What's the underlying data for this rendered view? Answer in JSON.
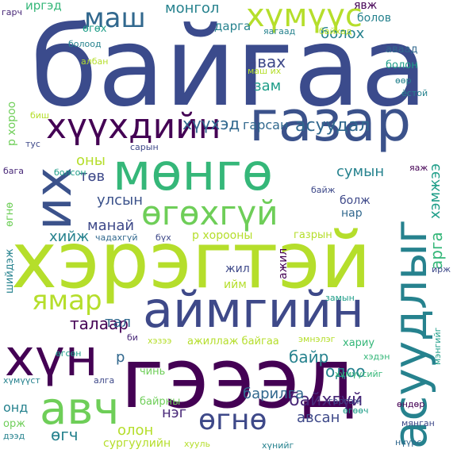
{
  "colors": {
    "background": "#ffffff",
    "palette": [
      "#440154",
      "#482878",
      "#3e4989",
      "#31688e",
      "#26828e",
      "#1f9e89",
      "#35b779",
      "#6ece58",
      "#b5de2b",
      "#fde725"
    ]
  },
  "words": [
    {
      "text": "байгаа",
      "color": "#3b4b8c"
    },
    {
      "text": "хэрэгтэй",
      "color": "#b5de2b"
    },
    {
      "text": "гэээд",
      "color": "#440154"
    },
    {
      "text": "газар",
      "color": "#3b528b"
    },
    {
      "text": "мөнгө",
      "color": "#35b779"
    },
    {
      "text": "аймгийн",
      "color": "#3e4989"
    },
    {
      "text": "асуудлыг",
      "color": "#26828e"
    },
    {
      "text": "хүн",
      "color": "#440154"
    },
    {
      "text": "их",
      "color": "#3b528b"
    },
    {
      "text": "хүүхдийн",
      "color": "#440154"
    },
    {
      "text": "авч",
      "color": "#6ece58"
    },
    {
      "text": "өгөхгүй",
      "color": "#6ece58"
    },
    {
      "text": "хүмүүс",
      "color": "#b5de2b"
    },
    {
      "text": "ямар",
      "color": "#b5de2b"
    },
    {
      "text": "маш",
      "color": "#31688e"
    },
    {
      "text": "өгнө",
      "color": "#3e4989"
    },
    {
      "text": "хүүхэд",
      "color": "#31688e"
    },
    {
      "text": "асуудал",
      "color": "#31688e"
    },
    {
      "text": "талаар",
      "color": "#440154"
    },
    {
      "text": "авах",
      "color": "#3e4989"
    },
    {
      "text": "гарсан",
      "color": "#31688e"
    },
    {
      "text": "монгол",
      "color": "#26828e"
    },
    {
      "text": "болох",
      "color": "#26828e"
    },
    {
      "text": "байхгүй",
      "color": "#482878"
    },
    {
      "text": "сумын",
      "color": "#26828e"
    },
    {
      "text": "улсын",
      "color": "#3b528b"
    },
    {
      "text": "манай",
      "color": "#3e4989"
    },
    {
      "text": "байр",
      "color": "#26828e"
    },
    {
      "text": "арга",
      "color": "#35b779"
    },
    {
      "text": "хэмжээ",
      "color": "#1f9e89"
    },
    {
      "text": "одоо",
      "color": "#26828e"
    },
    {
      "text": "авсан",
      "color": "#3e4989"
    },
    {
      "text": "барилга",
      "color": "#31688e"
    },
    {
      "text": "олон",
      "color": "#b5de2b"
    },
    {
      "text": "нэг",
      "color": "#482878"
    },
    {
      "text": "өгч",
      "color": "#26828e"
    },
    {
      "text": "тал",
      "color": "#31688e"
    },
    {
      "text": "оны",
      "color": "#b5de2b"
    },
    {
      "text": "төв",
      "color": "#3e4989"
    },
    {
      "text": "хийж",
      "color": "#26828e"
    },
    {
      "text": "зам",
      "color": "#1f9e89"
    },
    {
      "text": "иргэд",
      "color": "#35b779"
    },
    {
      "text": "өгөх",
      "color": "#1f9e89"
    },
    {
      "text": "дарга",
      "color": "#26828e"
    },
    {
      "text": "явж",
      "color": "#440154"
    },
    {
      "text": "болов",
      "color": "#26828e"
    },
    {
      "text": "аваад",
      "color": "#31688e"
    },
    {
      "text": "болон",
      "color": "#1f9e89"
    },
    {
      "text": "нар",
      "color": "#31688e"
    },
    {
      "text": "болж",
      "color": "#3e4989"
    },
    {
      "text": "р хороо",
      "color": "#6ece58"
    },
    {
      "text": "р хорооны",
      "color": "#b5de2b"
    },
    {
      "text": "газрын",
      "color": "#b5de2b"
    },
    {
      "text": "жил",
      "color": "#3e4989"
    },
    {
      "text": "ажил",
      "color": "#440154"
    },
    {
      "text": "ийм",
      "color": "#b5de2b"
    },
    {
      "text": "р",
      "color": "#31688e"
    },
    {
      "text": "чинь",
      "color": "#6ece58"
    },
    {
      "text": "байрны",
      "color": "#6ece58"
    },
    {
      "text": "сургуулийн",
      "color": "#b5de2b"
    },
    {
      "text": "гарч",
      "color": "#482878"
    },
    {
      "text": "болоод",
      "color": "#26828e"
    },
    {
      "text": "албан",
      "color": "#b5de2b"
    },
    {
      "text": "маш их",
      "color": "#b5de2b"
    },
    {
      "text": "ёстой",
      "color": "#26828e"
    },
    {
      "text": "өөр",
      "color": "#26828e"
    },
    {
      "text": "яагаад",
      "color": "#26828e"
    },
    {
      "text": "байхад",
      "color": "#b5de2b"
    },
    {
      "text": "тус",
      "color": "#3e4989"
    },
    {
      "text": "сарын",
      "color": "#3e4989"
    },
    {
      "text": "бага",
      "color": "#482878"
    },
    {
      "text": "болсон",
      "color": "#1f9e89"
    },
    {
      "text": "байж",
      "color": "#3e4989"
    },
    {
      "text": "чадахгүй",
      "color": "#31688e"
    },
    {
      "text": "бүх",
      "color": "#3e4989"
    },
    {
      "text": "яаж",
      "color": "#440154"
    },
    {
      "text": "өгнө",
      "color": "#6ece58"
    },
    {
      "text": "шийдэж",
      "color": "#26828e"
    },
    {
      "text": "замын",
      "color": "#1f9e89"
    },
    {
      "text": "ирж",
      "color": "#3e4989"
    },
    {
      "text": "эмнэлэг",
      "color": "#b5de2b"
    },
    {
      "text": "хариу",
      "color": "#35b779"
    },
    {
      "text": "хэдэн",
      "color": "#35b779"
    },
    {
      "text": "хүмүүсийг",
      "color": "#35b779"
    },
    {
      "text": "мэнгийг",
      "color": "#1f9e89"
    },
    {
      "text": "өгсөн",
      "color": "#1f9e89"
    },
    {
      "text": "би",
      "color": "#482878"
    },
    {
      "text": "хэзээ",
      "color": "#b5de2b"
    },
    {
      "text": "ажиллаж байгаа",
      "color": "#b5de2b"
    },
    {
      "text": "хүмүүст",
      "color": "#26828e"
    },
    {
      "text": "алга",
      "color": "#3e4989"
    },
    {
      "text": "гаргаж",
      "color": "#3e4989"
    },
    {
      "text": "өгөөч",
      "color": "#1f9e89"
    },
    {
      "text": "өндөр",
      "color": "#440154"
    },
    {
      "text": "мянган",
      "color": "#3e4989"
    },
    {
      "text": "онд",
      "color": "#26828e"
    },
    {
      "text": "орж",
      "color": "#6ece58"
    },
    {
      "text": "дээд",
      "color": "#26828e"
    },
    {
      "text": "хууль",
      "color": "#b5de2b"
    },
    {
      "text": "хүнийг",
      "color": "#26828e"
    },
    {
      "text": "нүүрс",
      "color": "#31688e"
    },
    {
      "text": "биш",
      "color": "#b5de2b"
    }
  ]
}
